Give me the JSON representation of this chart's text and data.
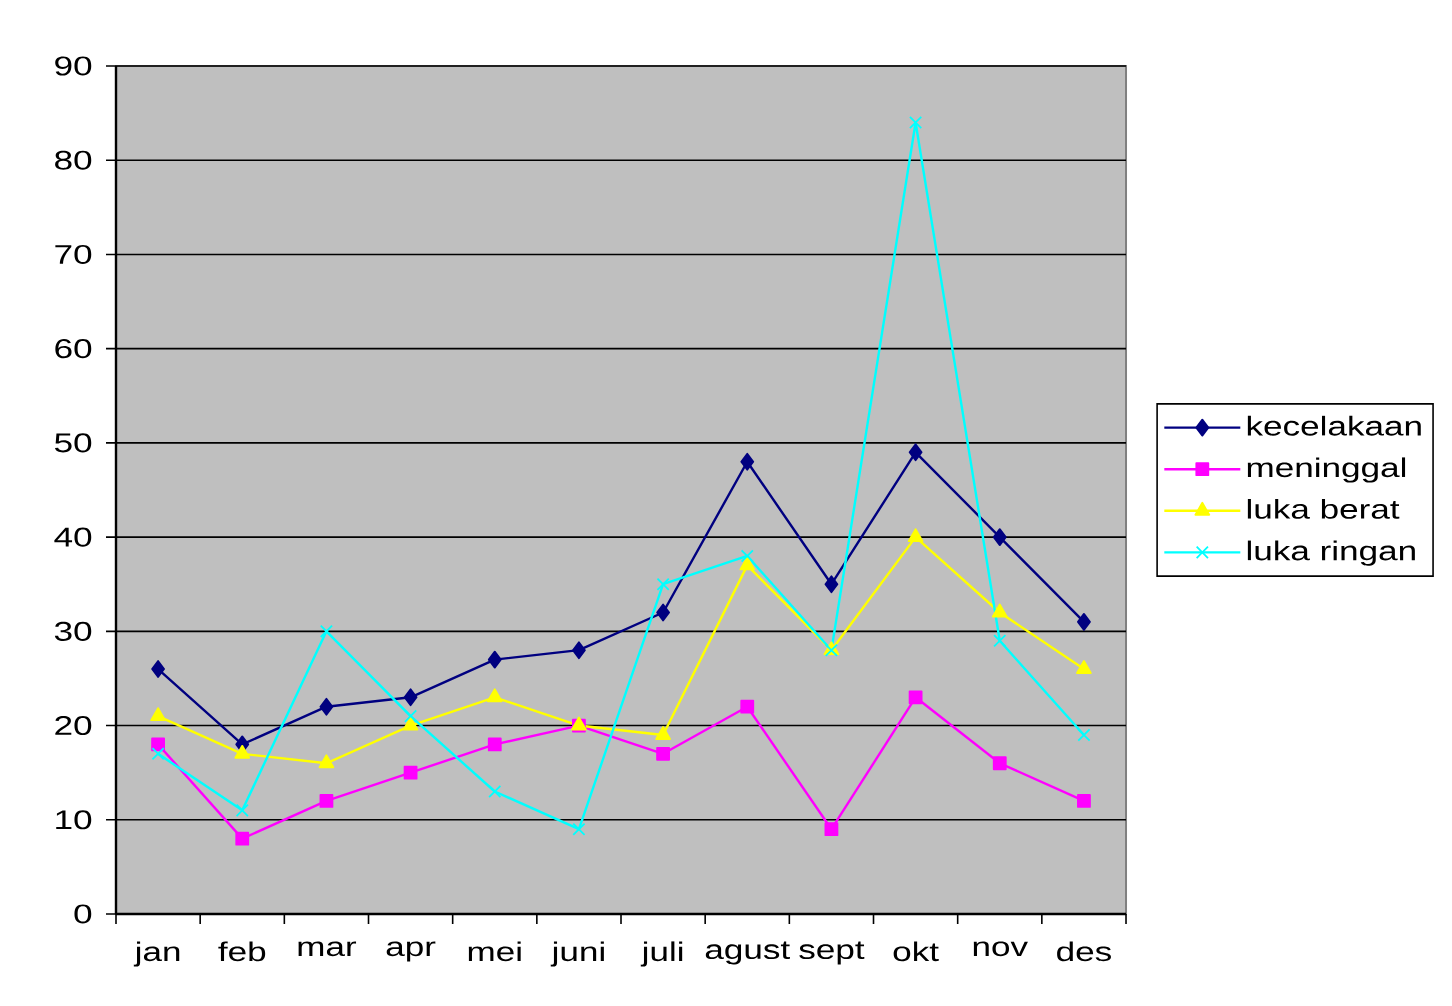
{
  "chart_data": {
    "type": "line",
    "categories": [
      "jan",
      "feb",
      "mar",
      "apr",
      "mei",
      "juni",
      "juli",
      "agust",
      "sept",
      "okt",
      "nov",
      "des"
    ],
    "series": [
      {
        "name": "kecelakaan",
        "color": "#000080",
        "marker": "diamond",
        "values": [
          26,
          18,
          22,
          23,
          27,
          28,
          32,
          48,
          35,
          49,
          40,
          31
        ]
      },
      {
        "name": "meninggal",
        "color": "#ff00ff",
        "marker": "square",
        "values": [
          18,
          8,
          12,
          15,
          18,
          20,
          17,
          22,
          9,
          23,
          16,
          12
        ]
      },
      {
        "name": "luka berat",
        "color": "#ffff00",
        "marker": "triangle",
        "values": [
          21,
          17,
          16,
          20,
          23,
          20,
          19,
          37,
          28,
          40,
          32,
          26
        ]
      },
      {
        "name": "luka ringan",
        "color": "#00ffff",
        "marker": "cross",
        "values": [
          17,
          11,
          30,
          21,
          13,
          9,
          35,
          38,
          28,
          84,
          29,
          19
        ]
      }
    ],
    "ylim": [
      0,
      90
    ],
    "yticks": [
      0,
      10,
      20,
      30,
      40,
      50,
      60,
      70,
      80,
      90
    ],
    "grid": "y",
    "legend": "right",
    "line_style": "solid"
  }
}
